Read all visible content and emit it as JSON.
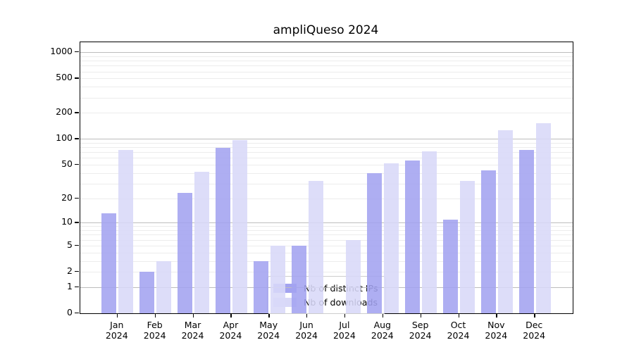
{
  "chart": {
    "title": "ampliQueso 2024",
    "axis": {
      "y_scale": "log1p",
      "y_tick_values": [
        0,
        1,
        2,
        5,
        10,
        20,
        50,
        100,
        200,
        500,
        1000
      ],
      "major_gridlines": [
        1,
        10,
        100,
        1000
      ],
      "minor_gridlines": [
        2,
        3,
        4,
        5,
        6,
        7,
        8,
        9,
        20,
        30,
        40,
        50,
        60,
        70,
        80,
        90,
        200,
        300,
        400,
        500,
        600,
        700,
        800,
        900
      ],
      "major_grid_color": "#bdbdbd",
      "minor_grid_color": "#ececec"
    },
    "colors": {
      "distinct_ips": "#a3a3f0",
      "downloads": "#d8d8f8"
    }
  },
  "chart_data": {
    "type": "bar",
    "title": "ampliQueso 2024",
    "categories": [
      "Jan 2024",
      "Feb 2024",
      "Mar 2024",
      "Apr 2024",
      "May 2024",
      "Jun 2024",
      "Jul 2024",
      "Aug 2024",
      "Sep 2024",
      "Oct 2024",
      "Nov 2024",
      "Dec 2024"
    ],
    "series": [
      {
        "name": "Nb of distinct IPs",
        "color": "#a3a3f0",
        "values": [
          13,
          2,
          23,
          78,
          3,
          5,
          0,
          40,
          56,
          11,
          43,
          75
        ]
      },
      {
        "name": "Nb of downloads",
        "color": "#d8d8f8",
        "values": [
          75,
          3,
          41,
          97,
          5,
          32,
          6,
          52,
          72,
          32,
          125,
          152
        ]
      }
    ],
    "xlabel": "",
    "ylabel": "",
    "yscale": "log1p",
    "ylim": [
      0,
      1300
    ],
    "yticks": [
      0,
      1,
      2,
      5,
      10,
      20,
      50,
      100,
      200,
      500,
      1000
    ],
    "grid": true,
    "legend_position": "lower center"
  }
}
